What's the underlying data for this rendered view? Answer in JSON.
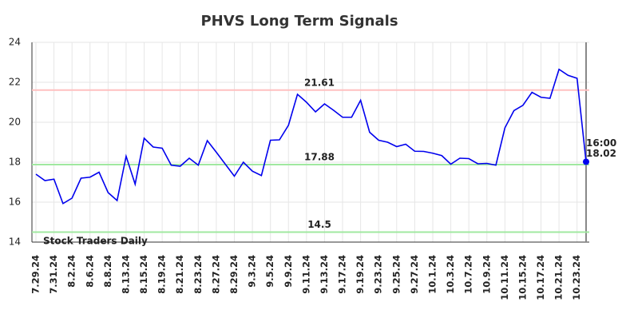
{
  "chart_data": {
    "type": "line",
    "title": "PHVS Long Term Signals",
    "categories": [
      "7.29.24",
      null,
      "7.31.24",
      null,
      "8.2.24",
      null,
      "8.6.24",
      null,
      "8.8.24",
      null,
      "8.13.24",
      null,
      "8.15.24",
      null,
      "8.19.24",
      null,
      "8.21.24",
      null,
      "8.23.24",
      null,
      "8.27.24",
      null,
      "8.29.24",
      null,
      "9.3.24",
      null,
      "9.5.24",
      null,
      "9.9.24",
      null,
      "9.11.24",
      null,
      "9.13.24",
      null,
      "9.17.24",
      null,
      "9.19.24",
      null,
      "9.23.24",
      null,
      "9.25.24",
      null,
      "9.27.24",
      null,
      "10.1.24",
      null,
      "10.3.24",
      null,
      "10.7.24",
      null,
      "10.9.24",
      null,
      "10.11.24",
      null,
      "10.15.24",
      null,
      "10.17.24",
      null,
      "10.21.24",
      null,
      "10.23.24",
      null
    ],
    "values": [
      17.4,
      17.08,
      17.15,
      15.93,
      16.2,
      17.2,
      17.25,
      17.5,
      16.48,
      16.08,
      18.3,
      16.9,
      19.2,
      18.76,
      18.7,
      17.85,
      17.8,
      18.2,
      17.85,
      19.08,
      18.5,
      17.9,
      17.3,
      18.0,
      17.55,
      17.33,
      19.1,
      19.12,
      19.85,
      21.4,
      21.0,
      20.52,
      20.92,
      20.6,
      20.25,
      20.25,
      21.1,
      19.5,
      19.1,
      19.0,
      18.78,
      18.9,
      18.55,
      18.54,
      18.45,
      18.33,
      17.9,
      18.2,
      18.18,
      17.92,
      17.94,
      17.85,
      19.72,
      20.58,
      20.85,
      21.5,
      21.25,
      21.2,
      22.65,
      22.35,
      22.2,
      18.02
    ],
    "color": "#0000ee",
    "last_time": "16:00",
    "ylim": [
      14,
      24
    ],
    "yticks": [
      14,
      16,
      18,
      20,
      22,
      24
    ],
    "grid": true,
    "reference_lines": [
      {
        "value": 21.61,
        "color": "#ffc0c0",
        "label_color": "#990000"
      },
      {
        "value": 17.88,
        "color": "#a0e8a0",
        "label_color": "#006600"
      },
      {
        "value": 14.5,
        "color": "#a0e8a0",
        "label_color": "#006600"
      }
    ],
    "watermark": "Stock Traders Daily"
  }
}
